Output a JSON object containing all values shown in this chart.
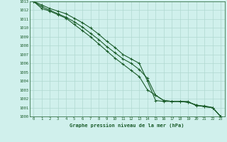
{
  "title": "Graphe pression niveau de la mer (hPa)",
  "bg_color": "#d0f0ec",
  "grid_color": "#b0d8d0",
  "line_color": "#1a5c2a",
  "xlim": [
    0,
    23
  ],
  "ylim": [
    1000,
    1013
  ],
  "x": [
    0,
    1,
    2,
    3,
    4,
    5,
    6,
    7,
    8,
    9,
    10,
    11,
    12,
    13,
    14,
    15,
    16,
    17,
    18,
    19,
    20,
    21,
    22,
    23
  ],
  "line1": [
    1013.0,
    1012.6,
    1012.2,
    1011.9,
    1011.6,
    1011.1,
    1010.6,
    1010.0,
    1009.3,
    1008.5,
    1007.8,
    1007.0,
    1006.5,
    1006.0,
    1004.0,
    1001.8,
    1001.7,
    1001.7,
    1001.7,
    1001.7,
    1001.2,
    1001.2,
    1001.0,
    1000.0
  ],
  "line2": [
    1013.0,
    1012.4,
    1012.0,
    1011.6,
    1011.2,
    1010.7,
    1010.1,
    1009.4,
    1008.7,
    1007.9,
    1007.2,
    1006.5,
    1006.0,
    1005.3,
    1004.3,
    1002.4,
    1001.8,
    1001.7,
    1001.7,
    1001.6,
    1001.3,
    1001.1,
    1001.0,
    1000.0
  ],
  "line3": [
    1013.0,
    1012.2,
    1011.9,
    1011.5,
    1011.1,
    1010.4,
    1009.7,
    1009.0,
    1008.2,
    1007.4,
    1006.6,
    1005.9,
    1005.2,
    1004.5,
    1003.0,
    1002.4,
    1001.8,
    1001.7,
    1001.7,
    1001.6,
    1001.3,
    1001.1,
    1001.0,
    1000.0
  ]
}
